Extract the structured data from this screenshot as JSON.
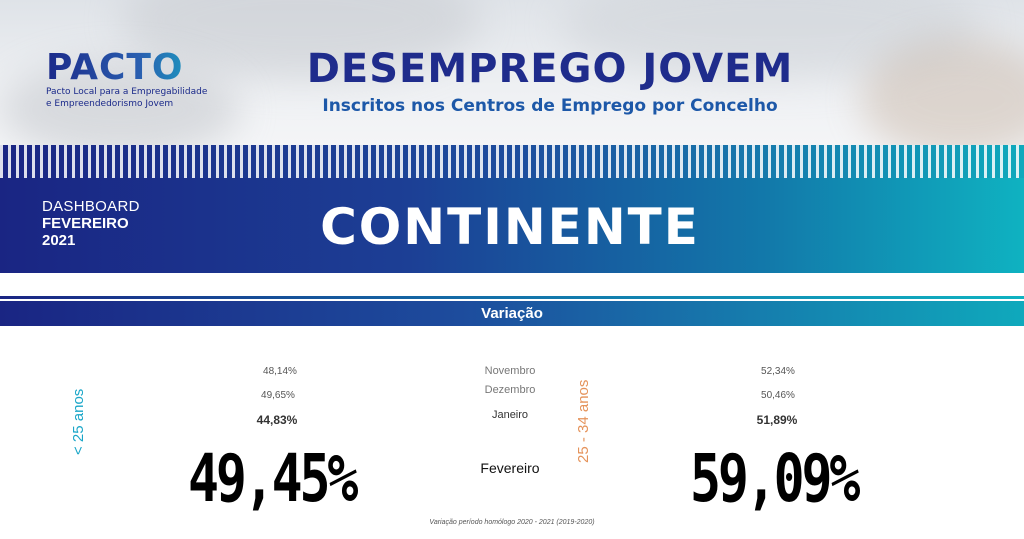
{
  "logo": {
    "word": "PACTO",
    "subtitle_line1": "Pacto Local para a Empregabilidade",
    "subtitle_line2": "e Empreendedorismo Jovem"
  },
  "header": {
    "title": "DESEMPREGO JOVEM",
    "subtitle": "Inscritos nos Centros de Emprego por Concelho"
  },
  "dashboard": {
    "label": "DASHBOARD",
    "month": "FEVEREIRO",
    "year": "2021",
    "region": "CONTINENTE"
  },
  "section": {
    "title": "Variação"
  },
  "groups": {
    "left": {
      "label": "< 25 anos",
      "nov": "48,14%",
      "dec": "49,65%",
      "jan": "44,83%",
      "feb": "49,45%"
    },
    "right": {
      "label": "25 - 34 anos",
      "nov": "52,34%",
      "dec": "50,46%",
      "jan": "51,89%",
      "feb": "59,09%"
    }
  },
  "months": {
    "nov": "Novembro",
    "dec": "Dezembro",
    "jan": "Janeiro",
    "feb": "Fevereiro"
  },
  "footnote": "Variação período homólogo 2020 - 2021 (2019-2020)",
  "colors": {
    "navy": "#1a2583",
    "teal": "#0fb2c1",
    "orange": "#e5935b"
  }
}
